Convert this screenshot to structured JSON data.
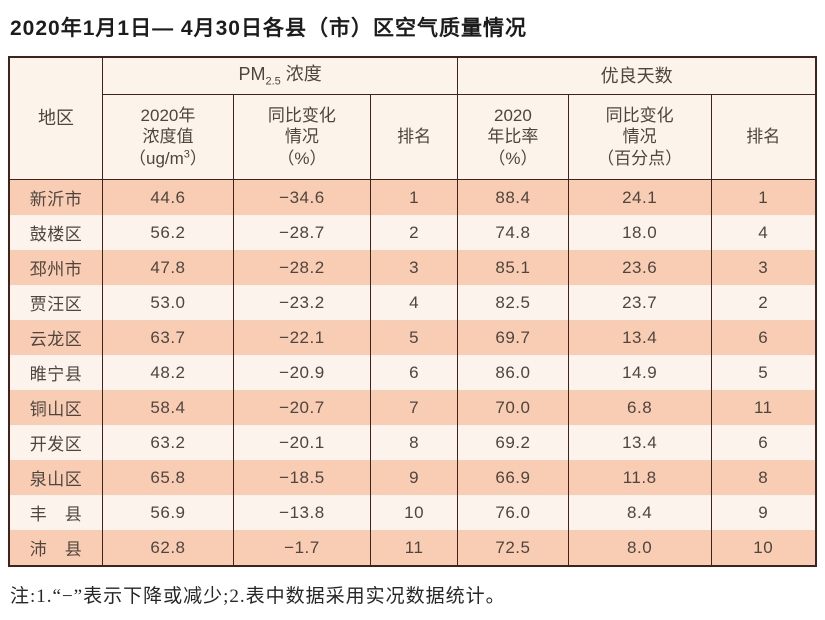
{
  "page": {
    "title": "2020年1月1日— 4月30日各县（市）区空气质量情况",
    "note": "注:1.“−”表示下降或减少;2.表中数据采用实况数据统计。"
  },
  "colors": {
    "row-odd": "#f9cdb4",
    "row-even": "#fdf3ed",
    "header-bg": "#fcf4ea",
    "border": "#42231c",
    "text": "#4e463e"
  },
  "table": {
    "header": {
      "region": "地区",
      "pm_group": {
        "prefix": "PM",
        "sub": "2.5",
        "suffix": " 浓度"
      },
      "good_group": "优良天数",
      "pm_value": {
        "line1": "2020年",
        "line2": "浓度值",
        "line3_pre": "（ug/m",
        "sup": "3",
        "line3_post": "）"
      },
      "pm_change": {
        "line1": "同比变化",
        "line2": "情况",
        "line3": "（%）"
      },
      "pm_rank": "排名",
      "good_rate": {
        "line1": "2020",
        "line2": "年比率",
        "line3": "（%）"
      },
      "good_change": {
        "line1": "同比变化",
        "line2": "情况",
        "line3": "（百分点）"
      },
      "good_rank": "排名"
    },
    "rows": [
      {
        "region": "新沂市",
        "pm_value": "44.6",
        "pm_change": "−34.6",
        "pm_rank": "1",
        "good_rate": "88.4",
        "good_change": "24.1",
        "good_rank": "1"
      },
      {
        "region": "鼓楼区",
        "pm_value": "56.2",
        "pm_change": "−28.7",
        "pm_rank": "2",
        "good_rate": "74.8",
        "good_change": "18.0",
        "good_rank": "4"
      },
      {
        "region": "邳州市",
        "pm_value": "47.8",
        "pm_change": "−28.2",
        "pm_rank": "3",
        "good_rate": "85.1",
        "good_change": "23.6",
        "good_rank": "3"
      },
      {
        "region": "贾汪区",
        "pm_value": "53.0",
        "pm_change": "−23.2",
        "pm_rank": "4",
        "good_rate": "82.5",
        "good_change": "23.7",
        "good_rank": "2"
      },
      {
        "region": "云龙区",
        "pm_value": "63.7",
        "pm_change": "−22.1",
        "pm_rank": "5",
        "good_rate": "69.7",
        "good_change": "13.4",
        "good_rank": "6"
      },
      {
        "region": "睢宁县",
        "pm_value": "48.2",
        "pm_change": "−20.9",
        "pm_rank": "6",
        "good_rate": "86.0",
        "good_change": "14.9",
        "good_rank": "5"
      },
      {
        "region": "铜山区",
        "pm_value": "58.4",
        "pm_change": "−20.7",
        "pm_rank": "7",
        "good_rate": "70.0",
        "good_change": "6.8",
        "good_rank": "11"
      },
      {
        "region": "开发区",
        "pm_value": "63.2",
        "pm_change": "−20.1",
        "pm_rank": "8",
        "good_rate": "69.2",
        "good_change": "13.4",
        "good_rank": "6"
      },
      {
        "region": "泉山区",
        "pm_value": "65.8",
        "pm_change": "−18.5",
        "pm_rank": "9",
        "good_rate": "66.9",
        "good_change": "11.8",
        "good_rank": "8"
      },
      {
        "region": "丰　县",
        "pm_value": "56.9",
        "pm_change": "−13.8",
        "pm_rank": "10",
        "good_rate": "76.0",
        "good_change": "8.4",
        "good_rank": "9"
      },
      {
        "region": "沛　县",
        "pm_value": "62.8",
        "pm_change": "−1.7",
        "pm_rank": "11",
        "good_rate": "72.5",
        "good_change": "8.0",
        "good_rank": "10"
      }
    ]
  }
}
